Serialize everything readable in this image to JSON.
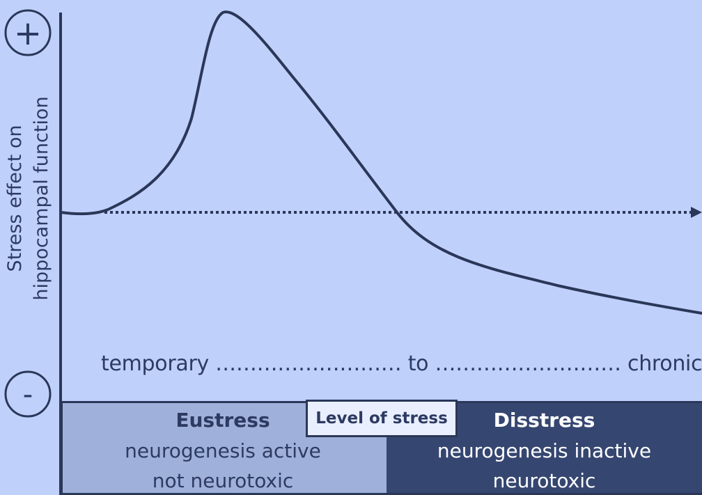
{
  "diagram": {
    "symbols": {
      "plus": "+",
      "minus": "-"
    },
    "y_axis_label_line1": "Stress effect on",
    "y_axis_label_line2": "hippocampal function",
    "timeline_text": "temporary ……………………… to ……………………… chronic",
    "level_label": "Level of stress",
    "eustress": {
      "title": "Eustress",
      "line1": "neurogenesis active",
      "line2": "not neurotoxic"
    },
    "disstress": {
      "title": "Disstress",
      "line1": "neurogenesis inactive",
      "line2": "neurotoxic"
    },
    "colors": {
      "background": "#bfd0fb",
      "curve": "#2b3758",
      "eustress_box": "#9fb1da",
      "disstress_box": "#354670",
      "level_box": "#e9efff"
    }
  }
}
